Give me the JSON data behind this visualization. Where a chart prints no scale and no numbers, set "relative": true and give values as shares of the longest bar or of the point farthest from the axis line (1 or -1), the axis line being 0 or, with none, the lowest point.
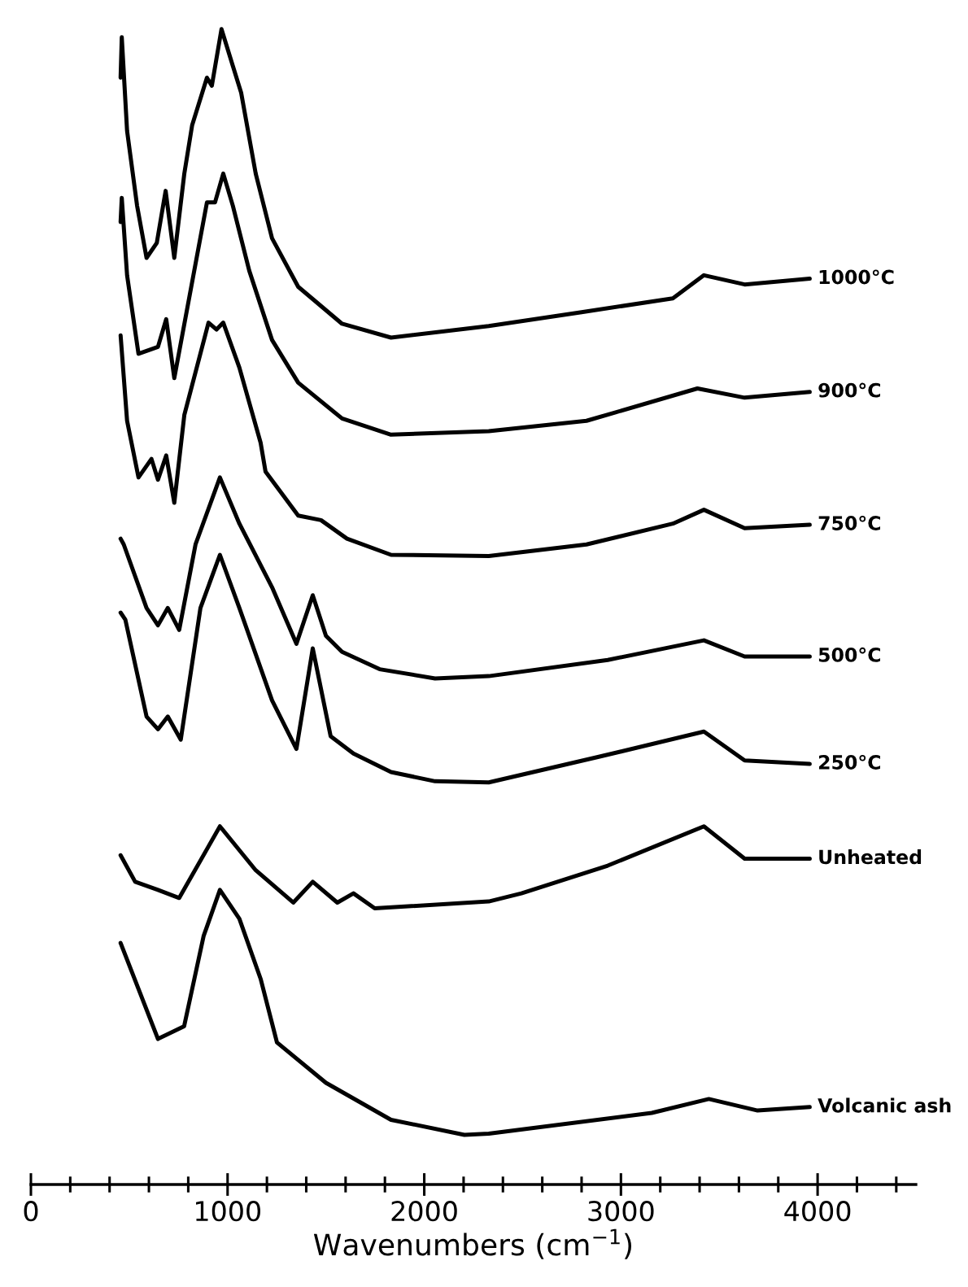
{
  "chart_data": {
    "type": "line",
    "relative": true,
    "xlabel": "Wavenumbers (cm$^{−1}$)",
    "xlim": [
      0,
      4500
    ],
    "xticks": [
      0,
      {
        "value": 200,
        "label": null
      },
      {
        "value": 400,
        "label": null
      },
      {
        "value": 600,
        "label": null
      },
      {
        "value": 800,
        "label": null
      },
      1000,
      {
        "value": 1200,
        "label": null
      },
      {
        "value": 1400,
        "label": null
      },
      {
        "value": 1600,
        "label": null
      },
      {
        "value": 1800,
        "label": null
      },
      2000,
      {
        "value": 2200,
        "label": null
      },
      {
        "value": 2400,
        "label": null
      },
      {
        "value": 2600,
        "label": null
      },
      {
        "value": 2800,
        "label": null
      },
      3000,
      {
        "value": 3200,
        "label": null
      },
      {
        "value": 3400,
        "label": null
      },
      {
        "value": 3600,
        "label": null
      },
      {
        "value": 3800,
        "label": null
      },
      4000,
      {
        "value": 4200,
        "label": null
      },
      {
        "value": 4400,
        "label": null
      }
    ],
    "grid": false,
    "legend": false,
    "marker": "none",
    "line_style": "solid",
    "series": [
      {
        "name": "1000°C",
        "color": "#000000",
        "x": [
          456,
          462,
          489,
          540,
          588,
          640,
          685,
          729,
          780,
          820,
          895,
          920,
          969,
          1027,
          1069,
          1143,
          1226,
          1359,
          1582,
          1831,
          2328,
          2800,
          3264,
          3422,
          3629,
          3960
        ],
        "values": [
          0.958,
          0.993,
          0.912,
          0.847,
          0.802,
          0.815,
          0.86,
          0.802,
          0.875,
          0.917,
          0.958,
          0.951,
          1.0,
          0.968,
          0.945,
          0.875,
          0.819,
          0.777,
          0.745,
          0.733,
          0.743,
          0.755,
          0.767,
          0.787,
          0.779,
          0.784
        ]
      },
      {
        "name": "900°C",
        "color": "#000000",
        "x": [
          456,
          462,
          489,
          547,
          646,
          688,
          729,
          895,
          936,
          978,
          1027,
          1110,
          1226,
          1359,
          1582,
          1831,
          2328,
          2825,
          3389,
          3629,
          3960
        ],
        "values": [
          0.833,
          0.854,
          0.787,
          0.719,
          0.725,
          0.749,
          0.698,
          0.85,
          0.85,
          0.875,
          0.847,
          0.791,
          0.731,
          0.694,
          0.663,
          0.649,
          0.652,
          0.661,
          0.689,
          0.681,
          0.686
        ]
      },
      {
        "name": "750°C",
        "color": "#000000",
        "x": [
          456,
          489,
          547,
          613,
          646,
          688,
          729,
          780,
          903,
          944,
          978,
          1060,
          1168,
          1193,
          1359,
          1475,
          1607,
          1831,
          2328,
          2825,
          3264,
          3422,
          3629,
          3960
        ],
        "values": [
          0.735,
          0.661,
          0.612,
          0.628,
          0.61,
          0.631,
          0.59,
          0.666,
          0.746,
          0.74,
          0.746,
          0.707,
          0.642,
          0.617,
          0.579,
          0.575,
          0.559,
          0.545,
          0.544,
          0.554,
          0.572,
          0.584,
          0.568,
          0.571
        ]
      },
      {
        "name": "500°C",
        "color": "#000000",
        "x": [
          456,
          472,
          588,
          646,
          696,
          754,
          837,
          961,
          1060,
          1226,
          1350,
          1433,
          1500,
          1582,
          1773,
          2055,
          2328,
          2933,
          3422,
          3629,
          3960
        ],
        "values": [
          0.559,
          0.554,
          0.499,
          0.484,
          0.499,
          0.48,
          0.554,
          0.612,
          0.572,
          0.517,
          0.468,
          0.51,
          0.475,
          0.461,
          0.446,
          0.438,
          0.44,
          0.454,
          0.471,
          0.457,
          0.457
        ]
      },
      {
        "name": "250°C",
        "color": "#000000",
        "x": [
          456,
          480,
          588,
          646,
          696,
          762,
          862,
          961,
          1060,
          1226,
          1350,
          1433,
          1524,
          1640,
          1831,
          2055,
          2328,
          2883,
          3422,
          3629,
          3960
        ],
        "values": [
          0.495,
          0.489,
          0.405,
          0.394,
          0.405,
          0.385,
          0.499,
          0.545,
          0.499,
          0.419,
          0.377,
          0.464,
          0.388,
          0.373,
          0.357,
          0.349,
          0.348,
          0.37,
          0.392,
          0.367,
          0.364
        ]
      },
      {
        "name": "Unheated",
        "color": "#000000",
        "x": [
          456,
          530,
          646,
          754,
          961,
          1143,
          1334,
          1433,
          1558,
          1640,
          1748,
          2328,
          2494,
          2933,
          3422,
          3629,
          3960
        ],
        "values": [
          0.285,
          0.262,
          0.255,
          0.248,
          0.31,
          0.272,
          0.244,
          0.262,
          0.244,
          0.252,
          0.239,
          0.245,
          0.252,
          0.276,
          0.31,
          0.282,
          0.282
        ]
      },
      {
        "name": "Volcanic ash",
        "color": "#000000",
        "x": [
          456,
          646,
          779,
          878,
          961,
          1060,
          1168,
          1251,
          1500,
          1831,
          2204,
          2328,
          3157,
          3447,
          3695,
          3960
        ],
        "values": [
          0.209,
          0.126,
          0.137,
          0.215,
          0.255,
          0.23,
          0.178,
          0.123,
          0.088,
          0.056,
          0.043,
          0.044,
          0.062,
          0.074,
          0.064,
          0.067
        ]
      }
    ]
  }
}
